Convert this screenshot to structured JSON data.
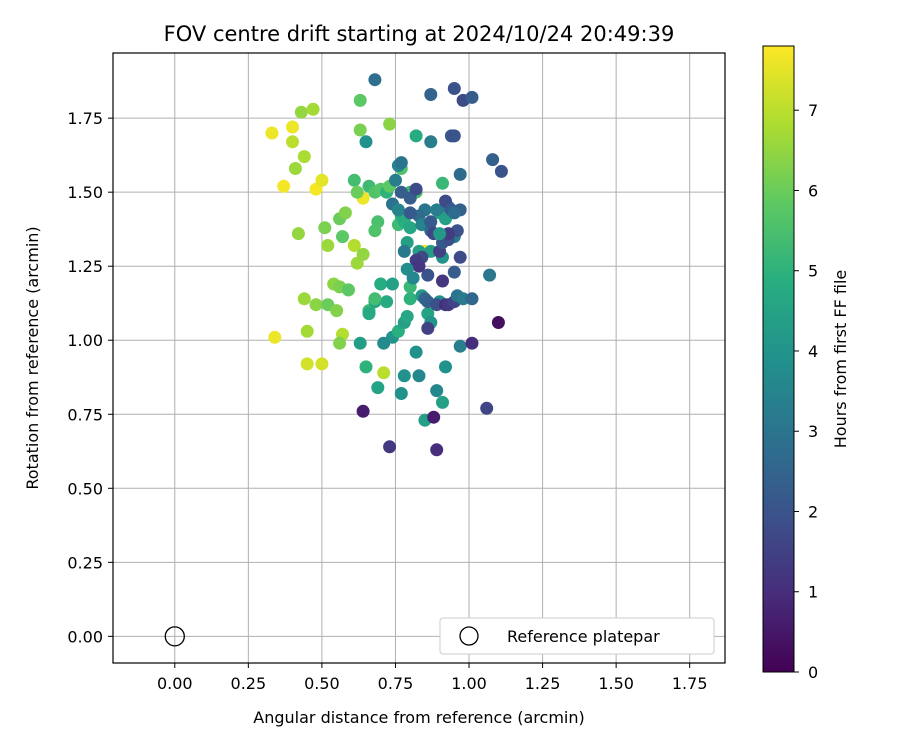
{
  "chart_data": {
    "type": "scatter",
    "title": "FOV centre drift starting at 2024/10/24 20:49:39",
    "xlabel": "Angular distance from reference (arcmin)",
    "ylabel": "Rotation from reference (arcmin)",
    "xlim": [
      -0.21,
      1.87
    ],
    "ylim": [
      -0.09,
      1.97
    ],
    "xticks": [
      "0.00",
      "0.25",
      "0.50",
      "0.75",
      "1.00",
      "1.25",
      "1.50",
      "1.75"
    ],
    "yticks": [
      "0.00",
      "0.25",
      "0.50",
      "0.75",
      "1.00",
      "1.25",
      "1.50",
      "1.75"
    ],
    "grid": true,
    "legend": {
      "position": "bottom-right",
      "entries": [
        "Reference platepar"
      ]
    },
    "reference": {
      "name": "Reference platepar",
      "x": 0.0,
      "y": 0.0
    },
    "colorbar": {
      "label": "Hours from first FF file",
      "min": 0,
      "max": 7.8,
      "ticks": [
        "0",
        "1",
        "2",
        "3",
        "4",
        "5",
        "6",
        "7"
      ],
      "colormap": "viridis"
    },
    "points": [
      [
        0.33,
        1.7,
        7.6
      ],
      [
        0.4,
        1.72,
        7.6
      ],
      [
        0.37,
        1.52,
        7.7
      ],
      [
        0.48,
        1.51,
        7.7
      ],
      [
        0.5,
        1.54,
        7.5
      ],
      [
        0.64,
        1.48,
        7.6
      ],
      [
        0.85,
        1.3,
        7.7
      ],
      [
        0.34,
        1.01,
        7.6
      ],
      [
        0.45,
        0.92,
        7.3
      ],
      [
        0.5,
        0.92,
        7.3
      ],
      [
        0.71,
        0.89,
        7.0
      ],
      [
        0.59,
        1.17,
        7.2
      ],
      [
        0.43,
        1.77,
        6.5
      ],
      [
        0.47,
        1.78,
        6.7
      ],
      [
        0.4,
        1.67,
        7.0
      ],
      [
        0.41,
        1.58,
        6.6
      ],
      [
        0.44,
        1.62,
        6.8
      ],
      [
        0.42,
        1.36,
        6.5
      ],
      [
        0.51,
        1.38,
        6.2
      ],
      [
        0.56,
        1.41,
        6.0
      ],
      [
        0.58,
        1.43,
        6.3
      ],
      [
        0.52,
        1.32,
        6.6
      ],
      [
        0.57,
        1.35,
        5.8
      ],
      [
        0.61,
        1.32,
        6.9
      ],
      [
        0.62,
        1.26,
        6.6
      ],
      [
        0.64,
        1.29,
        6.5
      ],
      [
        0.54,
        1.19,
        6.4
      ],
      [
        0.56,
        1.18,
        6.2
      ],
      [
        0.44,
        1.14,
        6.6
      ],
      [
        0.48,
        1.12,
        6.4
      ],
      [
        0.52,
        1.12,
        6.0
      ],
      [
        0.55,
        1.1,
        6.3
      ],
      [
        0.57,
        1.02,
        6.9
      ],
      [
        0.56,
        0.99,
        6.3
      ],
      [
        0.45,
        1.03,
        6.7
      ],
      [
        0.59,
        1.17,
        5.8
      ],
      [
        0.63,
        1.81,
        5.8
      ],
      [
        0.63,
        1.71,
        6.2
      ],
      [
        0.73,
        1.73,
        6.4
      ],
      [
        0.61,
        1.54,
        5.4
      ],
      [
        0.62,
        1.5,
        6.0
      ],
      [
        0.66,
        1.52,
        5.3
      ],
      [
        0.68,
        1.5,
        5.6
      ],
      [
        0.7,
        1.51,
        5.7
      ],
      [
        0.72,
        1.5,
        5.0
      ],
      [
        0.73,
        1.52,
        5.8
      ],
      [
        0.69,
        1.4,
        5.5
      ],
      [
        0.68,
        1.37,
        5.6
      ],
      [
        0.76,
        1.39,
        5.3
      ],
      [
        0.78,
        1.4,
        4.9
      ],
      [
        0.8,
        1.5,
        5.2
      ],
      [
        0.82,
        1.5,
        5.5
      ],
      [
        0.77,
        1.58,
        5.6
      ],
      [
        0.82,
        1.69,
        4.8
      ],
      [
        0.77,
        1.42,
        4.8
      ],
      [
        0.79,
        1.33,
        4.4
      ],
      [
        0.8,
        1.38,
        4.6
      ],
      [
        0.83,
        1.3,
        4.4
      ],
      [
        0.87,
        1.3,
        4.3
      ],
      [
        0.91,
        1.28,
        4.0
      ],
      [
        0.9,
        1.43,
        4.6
      ],
      [
        0.92,
        1.41,
        4.4
      ],
      [
        0.91,
        1.53,
        5.2
      ],
      [
        0.93,
        1.45,
        3.0
      ],
      [
        0.95,
        1.35,
        3.2
      ],
      [
        0.97,
        1.44,
        2.4
      ],
      [
        0.7,
        1.19,
        4.8
      ],
      [
        0.66,
        1.1,
        5.2
      ],
      [
        0.68,
        1.13,
        4.6
      ],
      [
        0.72,
        1.13,
        4.7
      ],
      [
        0.74,
        1.01,
        4.0
      ],
      [
        0.76,
        1.03,
        4.9
      ],
      [
        0.78,
        1.06,
        4.4
      ],
      [
        0.79,
        1.08,
        4.6
      ],
      [
        0.8,
        1.14,
        5.0
      ],
      [
        0.8,
        1.18,
        5.2
      ],
      [
        0.84,
        1.15,
        4.2
      ],
      [
        0.86,
        1.09,
        4.5
      ],
      [
        0.87,
        1.06,
        4.0
      ],
      [
        0.9,
        1.13,
        3.8
      ],
      [
        0.92,
        0.91,
        3.9
      ],
      [
        0.89,
        0.83,
        3.6
      ],
      [
        0.91,
        0.79,
        4.4
      ],
      [
        0.85,
        0.73,
        4.4
      ],
      [
        0.77,
        0.82,
        3.9
      ],
      [
        0.78,
        0.88,
        3.9
      ],
      [
        0.83,
        0.88,
        3.6
      ],
      [
        0.82,
        0.96,
        3.9
      ],
      [
        0.71,
        0.99,
        3.7
      ],
      [
        0.66,
        1.09,
        4.7
      ],
      [
        0.63,
        0.99,
        4.3
      ],
      [
        0.65,
        0.91,
        5.0
      ],
      [
        0.68,
        1.14,
        5.4
      ],
      [
        0.74,
        1.19,
        4.4
      ],
      [
        0.69,
        0.84,
        4.5
      ],
      [
        0.65,
        1.67,
        3.9
      ],
      [
        0.68,
        1.88,
        2.8
      ],
      [
        0.87,
        1.83,
        2.5
      ],
      [
        0.87,
        1.67,
        3.3
      ],
      [
        0.76,
        1.59,
        3.5
      ],
      [
        0.77,
        1.6,
        3.0
      ],
      [
        0.75,
        1.54,
        3.3
      ],
      [
        0.77,
        1.5,
        2.3
      ],
      [
        0.74,
        1.46,
        2.9
      ],
      [
        0.76,
        1.44,
        3.5
      ],
      [
        0.8,
        1.48,
        2.3
      ],
      [
        0.82,
        1.51,
        1.8
      ],
      [
        0.85,
        1.44,
        3.0
      ],
      [
        0.83,
        1.42,
        2.7
      ],
      [
        0.8,
        1.43,
        2.2
      ],
      [
        0.84,
        1.39,
        3.5
      ],
      [
        0.87,
        1.37,
        2.6
      ],
      [
        0.89,
        1.44,
        3.3
      ],
      [
        0.92,
        1.47,
        1.8
      ],
      [
        0.94,
        1.44,
        2.2
      ],
      [
        0.96,
        1.37,
        2.0
      ],
      [
        0.95,
        1.43,
        2.7
      ],
      [
        0.97,
        1.56,
        2.7
      ],
      [
        0.94,
        1.69,
        2.1
      ],
      [
        0.95,
        1.69,
        2.0
      ],
      [
        0.95,
        1.85,
        2.0
      ],
      [
        0.98,
        1.81,
        1.8
      ],
      [
        1.01,
        1.82,
        2.3
      ],
      [
        1.08,
        1.61,
        2.4
      ],
      [
        1.11,
        1.57,
        2.0
      ],
      [
        0.87,
        1.4,
        2.2
      ],
      [
        0.88,
        1.36,
        1.6
      ],
      [
        0.9,
        1.3,
        1.5
      ],
      [
        0.91,
        1.33,
        2.2
      ],
      [
        0.93,
        1.34,
        1.9
      ],
      [
        0.97,
        1.28,
        1.8
      ],
      [
        0.95,
        1.23,
        2.3
      ],
      [
        0.93,
        1.36,
        1.4
      ],
      [
        0.84,
        1.28,
        1.7
      ],
      [
        0.82,
        1.27,
        1.4
      ],
      [
        0.83,
        1.25,
        1.2
      ],
      [
        0.86,
        1.22,
        2.0
      ],
      [
        0.78,
        1.3,
        3.1
      ],
      [
        0.79,
        1.24,
        3.8
      ],
      [
        0.81,
        1.21,
        3.6
      ],
      [
        0.85,
        1.14,
        2.5
      ],
      [
        0.86,
        1.04,
        1.5
      ],
      [
        0.86,
        1.13,
        2.4
      ],
      [
        0.89,
        1.12,
        1.9
      ],
      [
        0.91,
        1.2,
        1.2
      ],
      [
        0.92,
        1.12,
        1.0
      ],
      [
        0.93,
        1.12,
        1.3
      ],
      [
        0.95,
        1.13,
        1.6
      ],
      [
        0.96,
        1.15,
        3.0
      ],
      [
        0.98,
        1.14,
        3.2
      ],
      [
        1.01,
        1.14,
        2.6
      ],
      [
        1.07,
        1.22,
        3.1
      ],
      [
        0.97,
        0.98,
        3.3
      ],
      [
        1.01,
        0.99,
        1.0
      ],
      [
        1.06,
        0.77,
        1.6
      ],
      [
        1.1,
        1.06,
        0.3
      ],
      [
        0.88,
        0.74,
        0.6
      ],
      [
        0.89,
        0.63,
        1.0
      ],
      [
        0.73,
        0.64,
        1.3
      ],
      [
        0.64,
        0.76,
        0.6
      ],
      [
        0.9,
        1.36,
        4.2
      ]
    ]
  }
}
